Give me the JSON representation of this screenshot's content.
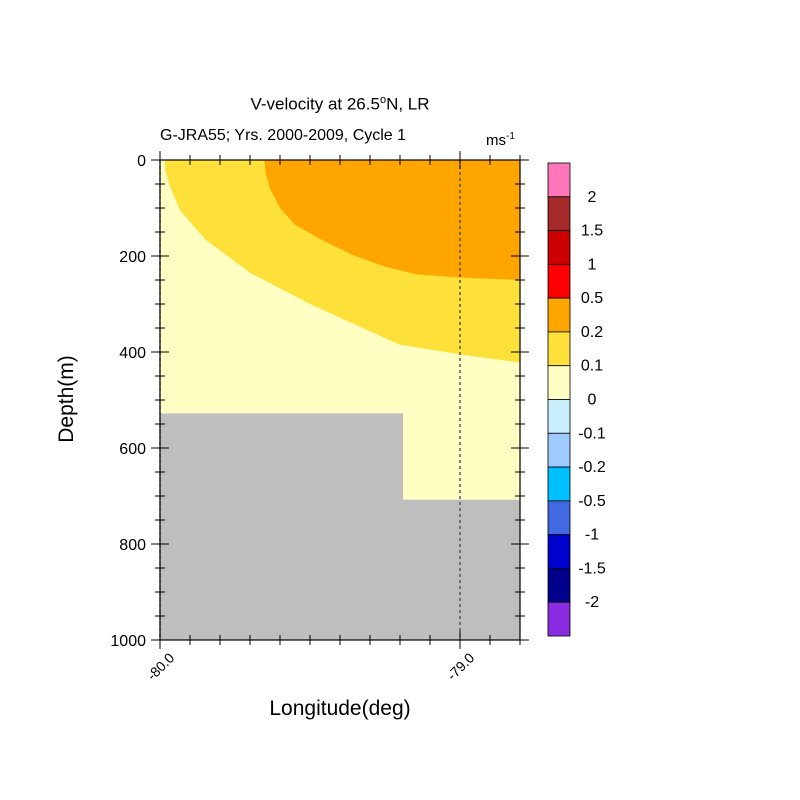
{
  "chart_data": {
    "type": "heatmap",
    "title_prefix": "V-velocity at 26.5",
    "title_degree": "o",
    "title_suffix": "N, LR",
    "subtitle": "G-JRA55; Yrs. 2000-2009, Cycle 1",
    "units_base": "ms",
    "units_exp": "-1",
    "xlabel": "Longitude(deg)",
    "ylabel": "Depth(m)",
    "xlim": [
      -80.0,
      -78.8
    ],
    "ylim": [
      1000,
      0
    ],
    "x_ticks": [
      {
        "value": -80.0,
        "label": "-80.0"
      },
      {
        "value": -79.0,
        "label": "-79.0"
      }
    ],
    "y_ticks": [
      {
        "value": 0,
        "label": "0"
      },
      {
        "value": 200,
        "label": "200"
      },
      {
        "value": 400,
        "label": "400"
      },
      {
        "value": 600,
        "label": "600"
      },
      {
        "value": 800,
        "label": "800"
      },
      {
        "value": 1000,
        "label": "1000"
      }
    ],
    "reference_lines_x": [
      -80.0,
      -79.0
    ],
    "colorbar": {
      "labels": [
        "2",
        "1.5",
        "1",
        "0.5",
        "0.2",
        "0.1",
        "0",
        "-0.1",
        "-0.2",
        "-0.5",
        "-1",
        "-1.5",
        "-2"
      ],
      "colors": [
        "#ff77bb",
        "#a52a2a",
        "#cc0000",
        "#ff0000",
        "#ffa500",
        "#fde03a",
        "#ffffc4",
        "#c9efff",
        "#9dcbff",
        "#00c0ff",
        "#4169e1",
        "#0000cc",
        "#00008b",
        "#8a2be2"
      ]
    },
    "contours": [
      {
        "level": "0 to 0.1",
        "color": "#ffffc4",
        "polygon": [
          [
            -80.0,
            0
          ],
          [
            -78.8,
            0
          ],
          [
            -78.8,
            708
          ],
          [
            -79.19,
            708
          ],
          [
            -79.19,
            528
          ],
          [
            -80.0,
            528
          ]
        ]
      },
      {
        "level": "0.1 to 0.2",
        "color": "#fde03a",
        "polygon": [
          [
            -79.983,
            0
          ],
          [
            -78.8,
            0
          ],
          [
            -78.8,
            422
          ],
          [
            -79.0,
            405
          ],
          [
            -79.2,
            385
          ],
          [
            -79.3,
            357
          ],
          [
            -79.5,
            300
          ],
          [
            -79.7,
            235
          ],
          [
            -79.85,
            165
          ],
          [
            -79.933,
            105
          ],
          [
            -79.967,
            55
          ],
          [
            -79.983,
            20
          ]
        ]
      },
      {
        "level": "0.2 to 0.5",
        "color": "#ffa500",
        "polygon": [
          [
            -79.653,
            0
          ],
          [
            -78.8,
            0
          ],
          [
            -78.8,
            250
          ],
          [
            -79.0,
            245
          ],
          [
            -79.147,
            238
          ],
          [
            -79.25,
            222
          ],
          [
            -79.35,
            200
          ],
          [
            -79.45,
            170
          ],
          [
            -79.55,
            135
          ],
          [
            -79.6,
            100
          ],
          [
            -79.633,
            60
          ],
          [
            -79.647,
            30
          ]
        ]
      }
    ],
    "land_mask": {
      "color": "#bebebe",
      "polygon": [
        [
          -80.0,
          528
        ],
        [
          -79.19,
          528
        ],
        [
          -79.19,
          708
        ],
        [
          -78.8,
          708
        ],
        [
          -78.8,
          1000
        ],
        [
          -80.0,
          1000
        ]
      ]
    }
  }
}
